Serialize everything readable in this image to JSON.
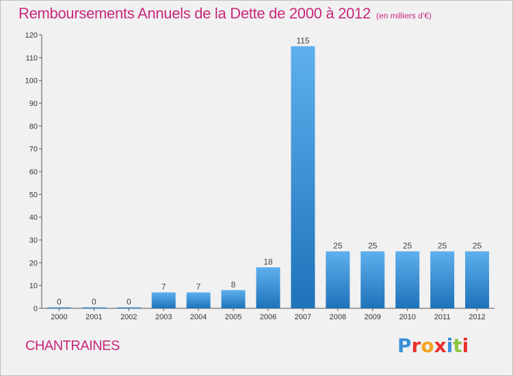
{
  "header": {
    "title": "Remboursements Annuels de la Dette de 2000 à 2012",
    "unit": "(en milliers d'€)"
  },
  "footer": {
    "city": "CHANTRAINES",
    "logo": "Proxiti"
  },
  "colors": {
    "title": "#c8287a",
    "bar_top": "#5eb0ee",
    "bar_bottom": "#1e72b8",
    "background": "#f1f1f1"
  },
  "chart_data": {
    "type": "bar",
    "title": "Remboursements Annuels de la Dette de 2000 à 2012",
    "xlabel": "",
    "ylabel": "",
    "categories": [
      "2000",
      "2001",
      "2002",
      "2003",
      "2004",
      "2005",
      "2006",
      "2007",
      "2008",
      "2009",
      "2010",
      "2011",
      "2012"
    ],
    "values": [
      0,
      0,
      0,
      7,
      7,
      8,
      18,
      115,
      25,
      25,
      25,
      25,
      25
    ],
    "ylim": [
      0,
      120
    ],
    "yticks": [
      0,
      10,
      20,
      30,
      40,
      50,
      60,
      70,
      80,
      90,
      100,
      110,
      120
    ],
    "grid": false,
    "legend": "none"
  }
}
